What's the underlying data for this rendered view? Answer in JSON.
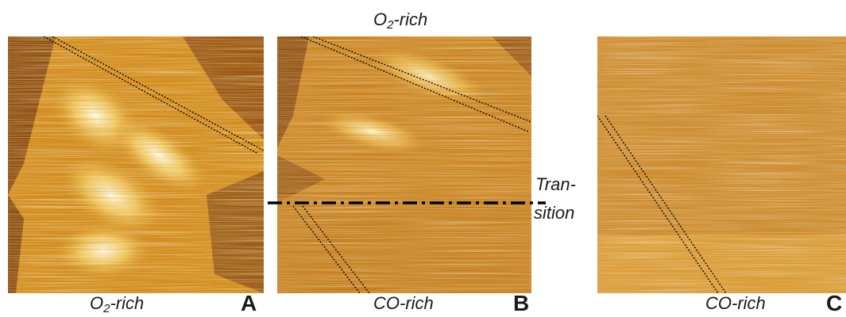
{
  "figure": {
    "top_label": {
      "main": "O",
      "sub": "2",
      "rest": "-rich"
    },
    "panel_a": {
      "letter": "A",
      "bottom_label": {
        "main": "O",
        "sub": "2",
        "rest": "-rich"
      }
    },
    "panel_b": {
      "letter": "B",
      "bottom_label": "CO-rich"
    },
    "panel_c": {
      "letter": "C",
      "bottom_label": "CO-rich"
    },
    "transition": {
      "line1": "Tran-",
      "line2": "sition"
    }
  },
  "colors": {
    "dark_brown": "#8a4a0e",
    "mid_orange": "#c9780f",
    "bright_yellow": "#f2c646",
    "highlight": "#fff6cf",
    "dash_line": "#000000"
  }
}
